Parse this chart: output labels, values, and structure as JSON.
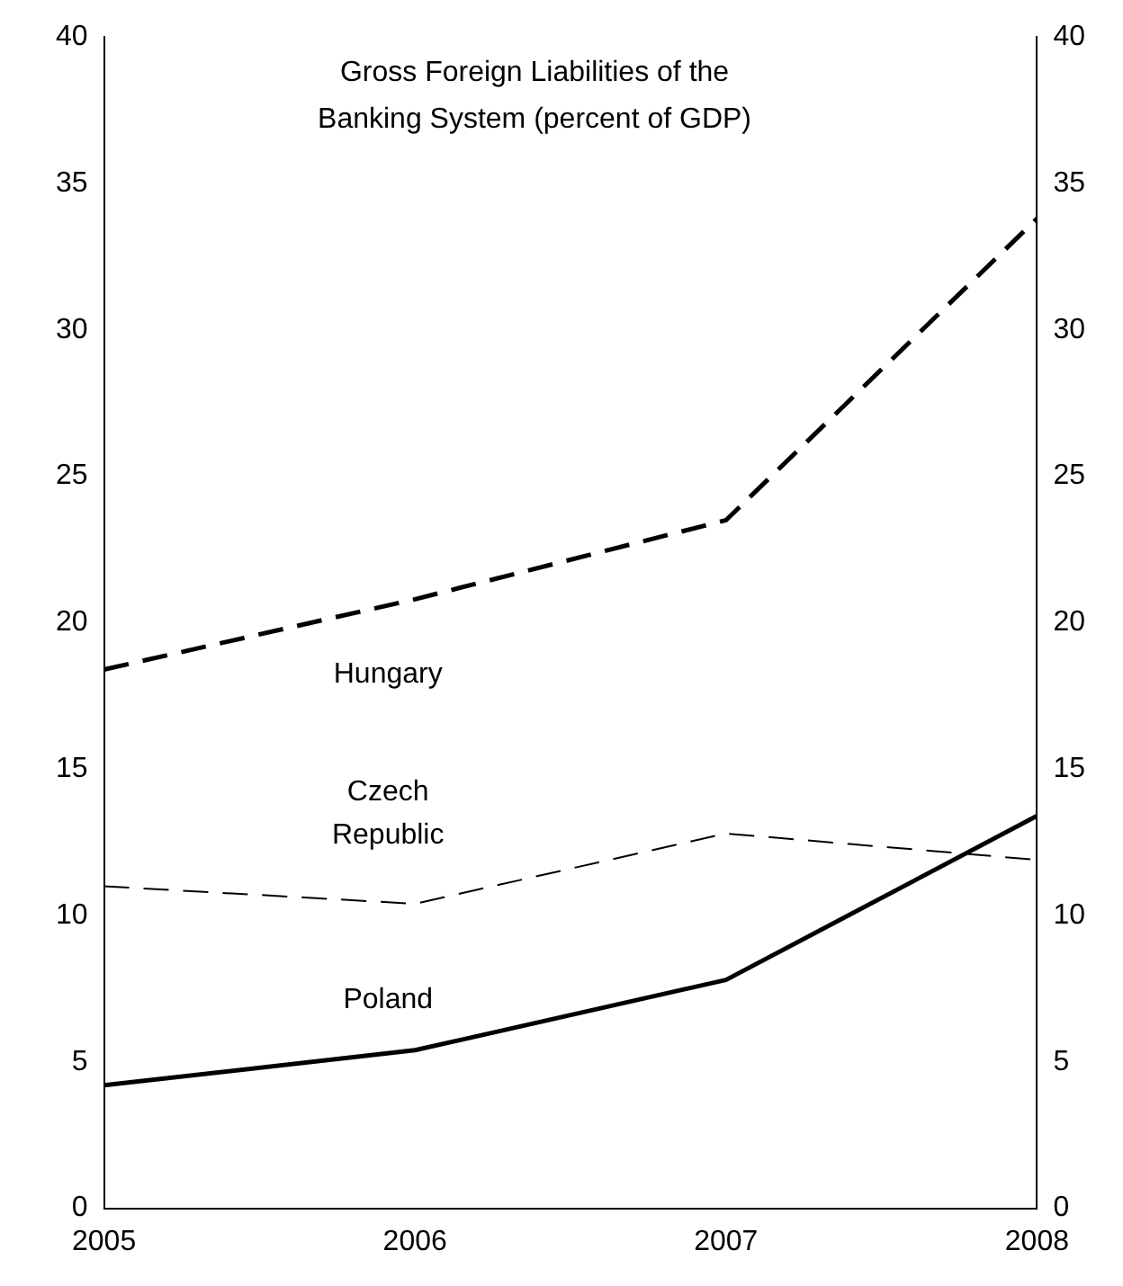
{
  "chart_data": {
    "type": "line",
    "title": "Gross Foreign Liabilities of the Banking System (percent of GDP)",
    "x": [
      2005,
      2006,
      2007,
      2008
    ],
    "series": [
      {
        "name": "Hungary",
        "color": "#000000",
        "line_style": "dashed",
        "values": [
          18.4,
          20.8,
          23.5,
          33.8
        ]
      },
      {
        "name": "Czech Republic",
        "color": "#000000",
        "line_style": "dashed",
        "values": [
          11.0,
          10.4,
          12.8,
          11.9
        ]
      },
      {
        "name": "Poland",
        "color": "#000000",
        "line_style": "solid",
        "values": [
          4.2,
          5.4,
          7.8,
          13.4
        ]
      }
    ],
    "xlim": [
      2005,
      2008
    ],
    "xticks": [
      2005,
      2006,
      2007,
      2008
    ],
    "ylim": [
      0,
      40
    ],
    "yticks": [
      0,
      5,
      10,
      15,
      20,
      25,
      30,
      35,
      40
    ],
    "y2lim": [
      0,
      40
    ],
    "y2ticks": [
      0,
      5,
      10,
      15,
      20,
      25,
      30,
      35,
      40
    ],
    "grid": false,
    "legend": false,
    "marker": "none"
  }
}
